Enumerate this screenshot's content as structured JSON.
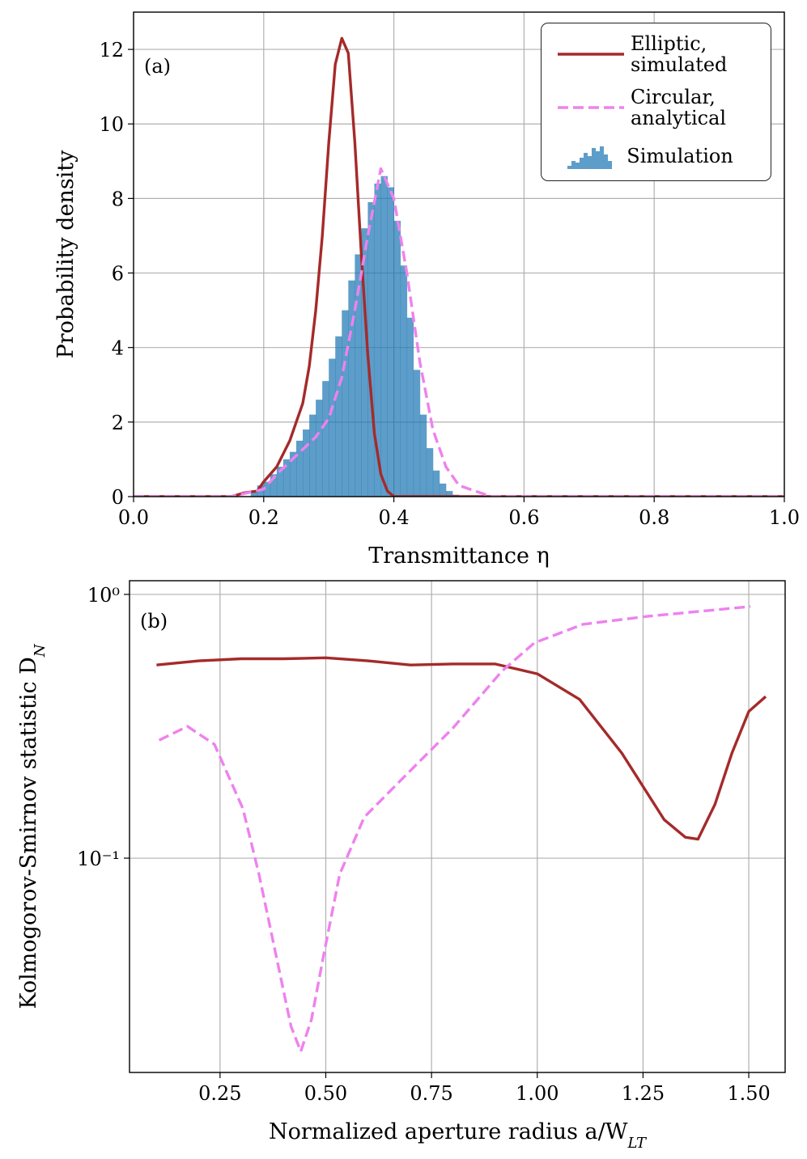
{
  "chart_data": [
    {
      "type": "histogram",
      "annotation": "(a)",
      "xlabel": "Transmittance η",
      "ylabel": "Probability density",
      "xlim": [
        0,
        1
      ],
      "ylim": [
        0,
        13
      ],
      "xticks": [
        {
          "value": 0,
          "label": "0.0"
        },
        0.2,
        0.4,
        0.6,
        0.8,
        {
          "value": 1,
          "label": "1.0"
        }
      ],
      "yticks": [
        0,
        2,
        4,
        6,
        8,
        10,
        12
      ],
      "grid": true,
      "legend": "upper right",
      "series": [
        {
          "name": "Elliptic, simulated",
          "type": "line",
          "color": "#a52a2a",
          "x": [
            0,
            0.15,
            0.17,
            0.19,
            0.2,
            0.22,
            0.24,
            0.26,
            0.27,
            0.28,
            0.29,
            0.3,
            0.31,
            0.32,
            0.33,
            0.34,
            0.35,
            0.36,
            0.37,
            0.38,
            0.39,
            0.4,
            1
          ],
          "values": [
            0,
            0,
            0.1,
            0.15,
            0.4,
            0.8,
            1.5,
            2.5,
            3.5,
            5,
            7,
            9.5,
            11.6,
            12.3,
            11.9,
            9.5,
            6.5,
            3.8,
            1.7,
            0.6,
            0.15,
            0,
            0
          ]
        },
        {
          "name": "Circular, analytical",
          "type": "line",
          "color": "#ee82ee",
          "dash": true,
          "x": [
            0,
            0.15,
            0.2,
            0.22,
            0.25,
            0.28,
            0.3,
            0.32,
            0.34,
            0.36,
            0.38,
            0.4,
            0.42,
            0.44,
            0.46,
            0.48,
            0.5,
            0.55,
            1
          ],
          "values": [
            0,
            0,
            0.2,
            0.6,
            1.1,
            1.6,
            2.1,
            3.2,
            5,
            7,
            8.8,
            8,
            6,
            3.6,
            1.8,
            0.8,
            0.3,
            0,
            0
          ]
        },
        {
          "name": "Simulation",
          "type": "histogram",
          "color": "#1f77b4",
          "bins": [
            0.18,
            0.19,
            0.2,
            0.21,
            0.22,
            0.23,
            0.24,
            0.25,
            0.26,
            0.27,
            0.28,
            0.29,
            0.3,
            0.31,
            0.32,
            0.33,
            0.34,
            0.35,
            0.36,
            0.37,
            0.38,
            0.39,
            0.4,
            0.41,
            0.42,
            0.43,
            0.44,
            0.45,
            0.46,
            0.47,
            0.48,
            0.49,
            0.5
          ],
          "values": [
            0.15,
            0.3,
            0.4,
            0.6,
            0.8,
            1,
            1.2,
            1.5,
            1.8,
            2.2,
            2.6,
            3.1,
            3.7,
            4.3,
            5,
            5.8,
            6.5,
            7.2,
            7.9,
            8.4,
            8.6,
            8.3,
            7.4,
            6.2,
            4.8,
            3.4,
            2.2,
            1.3,
            0.7,
            0.35,
            0.15,
            0.05
          ]
        }
      ]
    },
    {
      "type": "line",
      "annotation": "(b)",
      "xlabel": "Normalized aperture radius a/WLT",
      "ylabel": "Kolmogorov-Smirnov statistic DN",
      "xlim": [
        0.036,
        1.586
      ],
      "ylim": [
        0.0154,
        1.127
      ],
      "yscale": "log",
      "xticks": [
        0.25,
        {
          "value": 0.5,
          "label": "0.50"
        },
        0.75,
        {
          "value": 1,
          "label": "1.00"
        },
        1.25,
        {
          "value": 1.5,
          "label": "1.50"
        }
      ],
      "yticks": [
        {
          "value": 0.1,
          "label": "10⁻¹"
        },
        {
          "value": 1,
          "label": "10⁰"
        }
      ],
      "grid": true,
      "series": [
        {
          "name": "Elliptic, simulated",
          "type": "line",
          "color": "#a52a2a",
          "x": [
            0.1,
            0.2,
            0.3,
            0.4,
            0.5,
            0.6,
            0.7,
            0.8,
            0.9,
            1,
            1.1,
            1.2,
            1.3,
            1.35,
            1.38,
            1.42,
            1.46,
            1.5,
            1.54
          ],
          "values": [
            0.54,
            0.56,
            0.57,
            0.57,
            0.575,
            0.56,
            0.54,
            0.545,
            0.545,
            0.5,
            0.4,
            0.25,
            0.14,
            0.12,
            0.118,
            0.16,
            0.25,
            0.36,
            0.41
          ]
        },
        {
          "name": "Circular, analytical",
          "type": "line",
          "color": "#ee82ee",
          "dash": true,
          "x": [
            0.106,
            0.173,
            0.237,
            0.304,
            0.342,
            0.39,
            0.418,
            0.441,
            0.466,
            0.495,
            0.533,
            0.591,
            0.686,
            0.801,
            0.916,
            0.993,
            1.108,
            1.261,
            1.504
          ],
          "values": [
            0.28,
            0.316,
            0.27,
            0.154,
            0.087,
            0.0375,
            0.023,
            0.0185,
            0.0244,
            0.043,
            0.087,
            0.143,
            0.204,
            0.312,
            0.511,
            0.655,
            0.77,
            0.826,
            0.9
          ]
        }
      ]
    }
  ]
}
